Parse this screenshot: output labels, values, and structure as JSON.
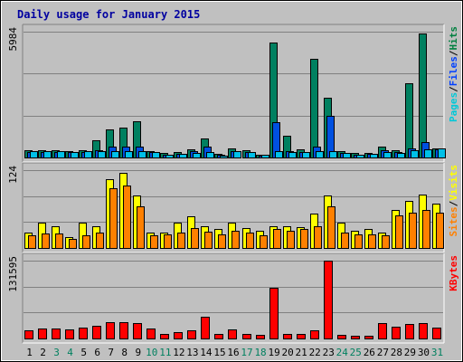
{
  "chart_data": {
    "type": "bar",
    "title": "Daily usage for January 2015",
    "days": [
      "1",
      "2",
      "3",
      "4",
      "5",
      "6",
      "7",
      "8",
      "9",
      "10",
      "11",
      "12",
      "13",
      "14",
      "15",
      "16",
      "17",
      "18",
      "19",
      "20",
      "21",
      "22",
      "23",
      "24",
      "25",
      "26",
      "27",
      "28",
      "29",
      "30",
      "31"
    ],
    "weekend_days": [
      "3",
      "4",
      "10",
      "11",
      "17",
      "18",
      "24",
      "25",
      "31"
    ],
    "panels": [
      {
        "id": "hits-panel",
        "max_label": "5984",
        "ymax": 5984,
        "legend": [
          {
            "label": "Pages",
            "color": "#00c8d8"
          },
          {
            "label": "/",
            "color": "#000000"
          },
          {
            "label": "Files",
            "color": "#0040ff"
          },
          {
            "label": "/",
            "color": "#000000"
          },
          {
            "label": "Hits",
            "color": "#008040"
          }
        ],
        "series": [
          {
            "name": "Hits",
            "color": "#008060",
            "values": [
              330,
              350,
              350,
              320,
              350,
              820,
              1320,
              1420,
              1730,
              320,
              200,
              250,
              380,
              920,
              170,
              450,
              330,
              150,
              5450,
              1050,
              370,
              4700,
              2830,
              280,
              200,
              220,
              500,
              330,
              3550,
              5900,
              450
            ]
          },
          {
            "name": "Files",
            "color": "#0050e0",
            "values": [
              260,
              260,
              260,
              240,
              260,
              360,
              520,
              500,
              520,
              240,
              140,
              190,
              280,
              520,
              130,
              310,
              250,
              100,
              1670,
              300,
              250,
              500,
              1990,
              200,
              140,
              160,
              350,
              240,
              440,
              730,
              400
            ]
          },
          {
            "name": "Pages",
            "color": "#00c0e8",
            "values": [
              280,
              290,
              290,
              270,
              290,
              300,
              320,
              320,
              320,
              270,
              120,
              170,
              210,
              270,
              100,
              290,
              270,
              130,
              320,
              260,
              240,
              300,
              320,
              220,
              150,
              170,
              270,
              210,
              340,
              400,
              420
            ]
          }
        ]
      },
      {
        "id": "visits-panel",
        "max_label": "124",
        "ymax": 124,
        "legend": [
          {
            "label": "Sites",
            "color": "#ff8000"
          },
          {
            "label": "/",
            "color": "#000000"
          },
          {
            "label": "Visits",
            "color": "#ffff00"
          }
        ],
        "series": [
          {
            "name": "Visits",
            "color": "#ffff00",
            "values": [
              25,
              40,
              35,
              18,
              40,
              35,
              110,
              120,
              84,
              25,
              25,
              40,
              50,
              35,
              30,
              40,
              32,
              28,
              35,
              35,
              33,
              55,
              84,
              40,
              28,
              30,
              25,
              60,
              75,
              85,
              70
            ]
          },
          {
            "name": "Sites",
            "color": "#ff8000",
            "values": [
              20,
              23,
              23,
              15,
              20,
              25,
              95,
              100,
              66,
              20,
              22,
              25,
              32,
              26,
              22,
              27,
              25,
              20,
              30,
              28,
              30,
              35,
              66,
              25,
              22,
              22,
              20,
              52,
              56,
              60,
              56
            ]
          }
        ]
      },
      {
        "id": "kbytes-panel",
        "max_label": "131595",
        "ymax": 131595,
        "legend": [
          {
            "label": "KBytes",
            "color": "#ff0000"
          }
        ],
        "series": [
          {
            "name": "KBytes",
            "color": "#ff0000",
            "values": [
              14500,
              16500,
              16500,
              15500,
              18000,
              22000,
              28000,
              27000,
              26000,
              17000,
              8000,
              10000,
              14000,
              37000,
              7000,
              16000,
              8000,
              6000,
              85000,
              8000,
              8000,
              14000,
              131595,
              6500,
              5000,
              5000,
              26000,
              20000,
              24000,
              26000,
              19000
            ]
          }
        ]
      }
    ]
  }
}
